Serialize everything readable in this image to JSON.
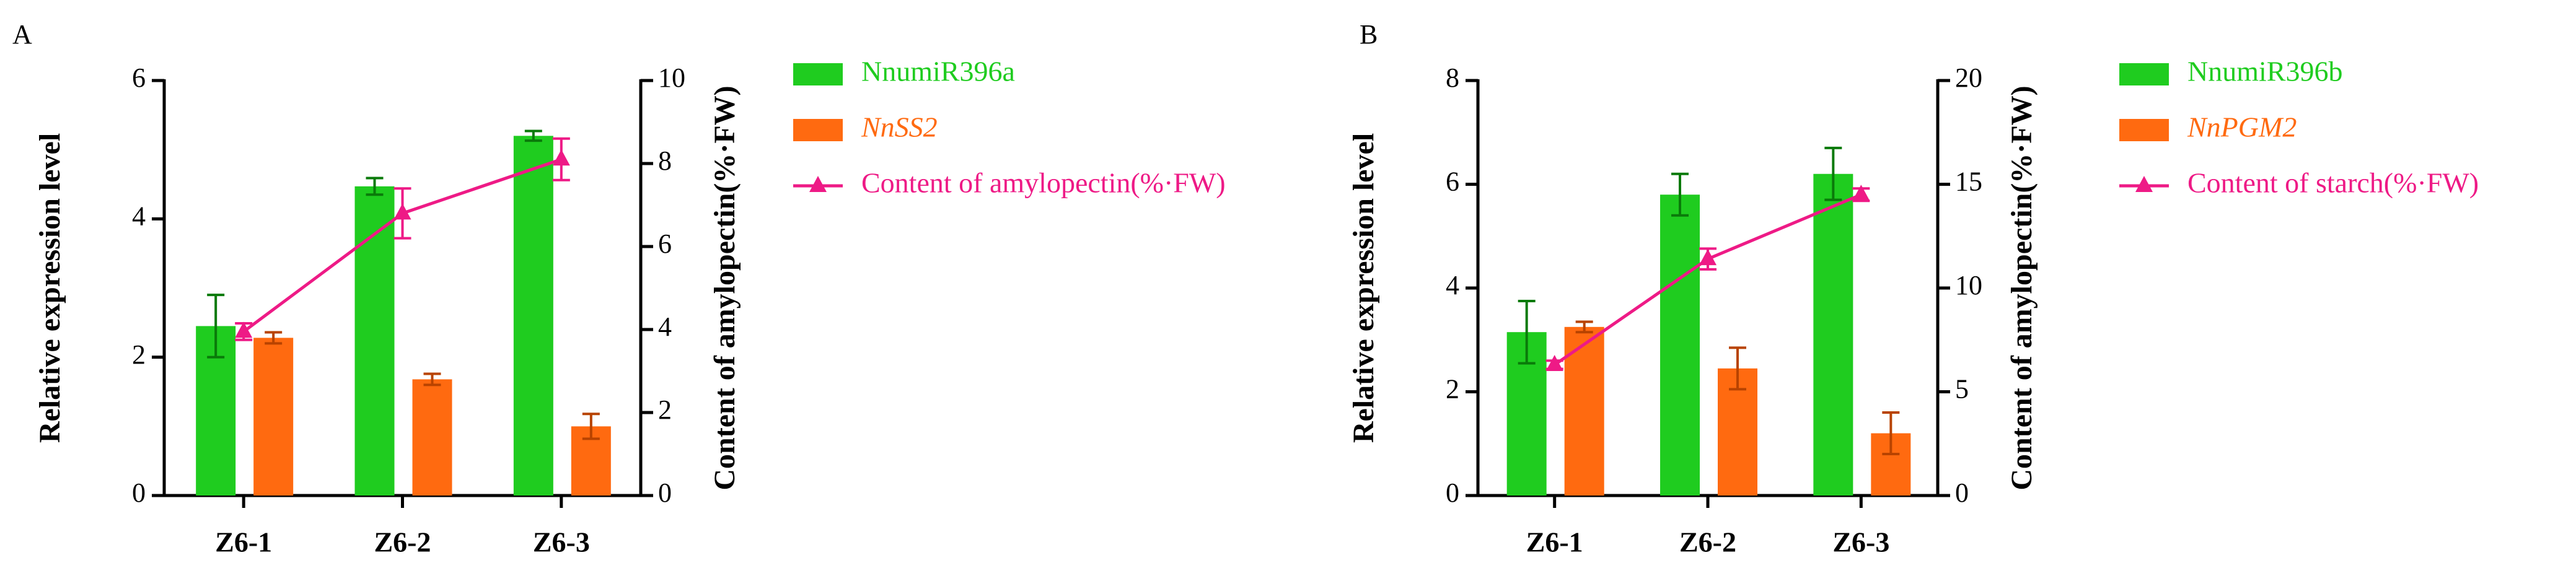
{
  "chart_data": [
    {
      "type": "bar-line",
      "panel": "A",
      "categories": [
        "Z6-1",
        "Z6-2",
        "Z6-3"
      ],
      "ylabel": "Relative expression level",
      "y2label": "Content of amylopectin(%·FW)",
      "ylim": [
        0,
        6
      ],
      "yticks": [
        0,
        2,
        4,
        6
      ],
      "y2lim": [
        0,
        10
      ],
      "y2ticks": [
        0,
        2,
        4,
        6,
        8,
        10
      ],
      "series": [
        {
          "name": "NnumiR396a",
          "type": "bar",
          "color": "#1fcc1f",
          "values": [
            2.45,
            4.47,
            5.2
          ],
          "errors": [
            0.45,
            0.12,
            0.07
          ]
        },
        {
          "name": "NnSS2",
          "type": "bar",
          "italic": true,
          "color": "#ff6a10",
          "values": [
            2.28,
            1.68,
            1.0
          ],
          "errors": [
            0.08,
            0.08,
            0.18
          ]
        },
        {
          "name": "Content of amylopectin(%·FW)",
          "type": "line",
          "axis": "y2",
          "color": "#ee1a86",
          "values": [
            3.95,
            6.8,
            8.1
          ],
          "errors": [
            0.2,
            0.6,
            0.5
          ]
        }
      ]
    },
    {
      "type": "bar-line",
      "panel": "B",
      "categories": [
        "Z6-1",
        "Z6-2",
        "Z6-3"
      ],
      "ylabel": "Relative expression level",
      "y2label": "Content of amylopectin(%·FW)",
      "ylim": [
        0,
        8
      ],
      "yticks": [
        0,
        2,
        4,
        6,
        8
      ],
      "y2lim": [
        0,
        20
      ],
      "y2ticks": [
        0,
        5,
        10,
        15,
        20
      ],
      "series": [
        {
          "name": "NnumiR396b",
          "type": "bar",
          "color": "#1fcc1f",
          "values": [
            3.15,
            5.8,
            6.2
          ],
          "errors": [
            0.6,
            0.4,
            0.5
          ]
        },
        {
          "name": "NnPGM2",
          "type": "bar",
          "italic": true,
          "color": "#ff6a10",
          "values": [
            3.25,
            2.45,
            1.2
          ],
          "errors": [
            0.1,
            0.4,
            0.4
          ]
        },
        {
          "name": "Content of starch(%·FW)",
          "type": "line",
          "axis": "y2",
          "color": "#ee1a86",
          "values": [
            6.3,
            11.4,
            14.5
          ],
          "errors": [
            0.2,
            0.5,
            0.3
          ]
        }
      ]
    }
  ]
}
